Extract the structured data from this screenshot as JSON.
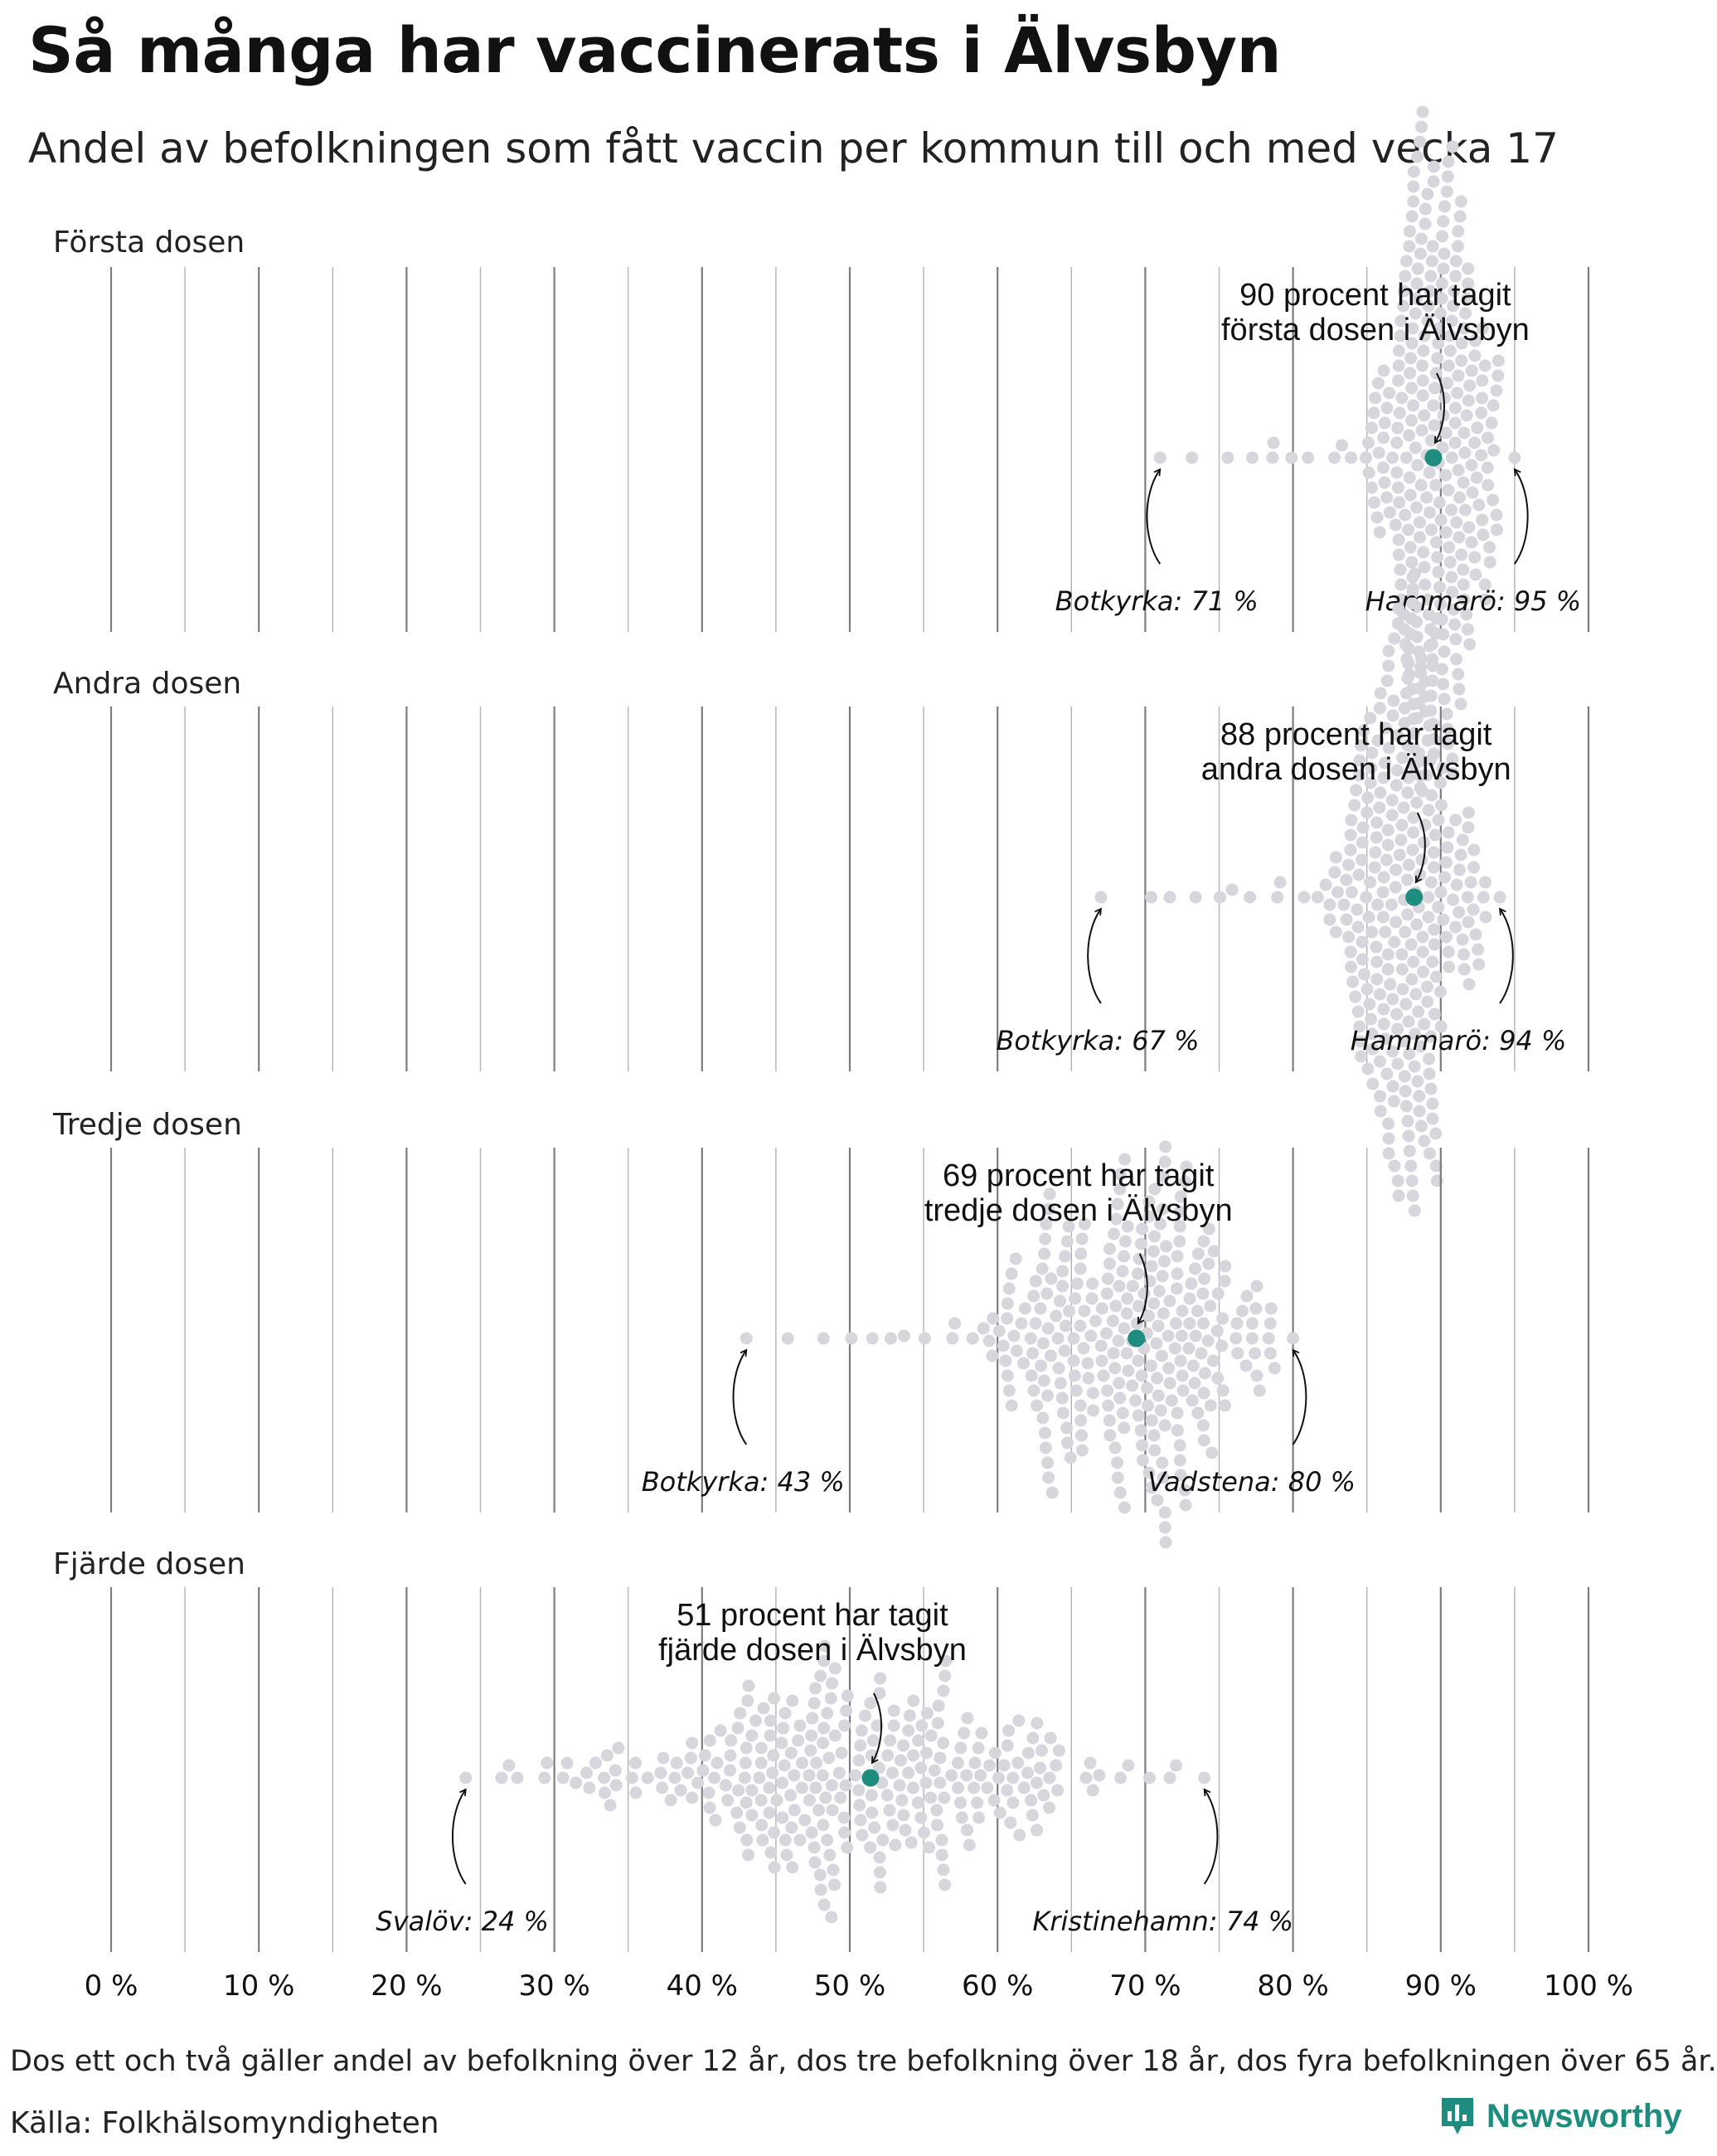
{
  "title": "Så många har vaccinerats i Älvsbyn",
  "subtitle": "Andel av befolkningen som fått vaccin per kommun till och med vecka 17",
  "footer": {
    "note": "Dos ett och två gäller andel av befolkning över 12 år, dos tre befolkning över 18 år, dos fyra befolkningen över 65 år.",
    "source": "Källa: Folkhälsomyndigheten",
    "brand": "Newsworthy"
  },
  "colors": {
    "highlight": "#1e8c7e",
    "dots": "#d7d6dd",
    "gridline": "#8a8a8a",
    "text": "#111111"
  },
  "icons": [
    "arrow-icon",
    "newsworthy-logo-icon"
  ],
  "chart_data": {
    "type": "scatter",
    "subtype": "beeswarm",
    "x_ticks": [
      0,
      10,
      20,
      30,
      40,
      50,
      60,
      70,
      80,
      90,
      100
    ],
    "x_tick_labels": [
      "0 %",
      "10 %",
      "20 %",
      "30 %",
      "40 %",
      "50 %",
      "60 %",
      "70 %",
      "80 %",
      "90 %",
      "100 %"
    ],
    "xlim": [
      0,
      100
    ],
    "minor_gridlines_every": 5,
    "panels": [
      {
        "label": "Första dosen",
        "highlight": {
          "municipality": "Älvsbyn",
          "value": 89.5,
          "annotation": [
            "90 procent har tagit",
            "första dosen i Älvsbyn"
          ]
        },
        "min": {
          "label": "Botkyrka: 71 %",
          "value": 71
        },
        "max": {
          "label": "Hammarö: 95 %",
          "value": 95
        },
        "distribution": {
          "center": 89.5,
          "sd": 2.1,
          "count": 290
        }
      },
      {
        "label": "Andra dosen",
        "highlight": {
          "municipality": "Älvsbyn",
          "value": 88.2,
          "annotation": [
            "88 procent har tagit",
            "andra dosen i Älvsbyn"
          ]
        },
        "min": {
          "label": "Botkyrka: 67 %",
          "value": 67
        },
        "max": {
          "label": "Hammarö: 94 %",
          "value": 94
        },
        "distribution": {
          "center": 87.7,
          "sd": 2.5,
          "count": 290
        }
      },
      {
        "label": "Tredje dosen",
        "highlight": {
          "municipality": "Älvsbyn",
          "value": 69.4,
          "annotation": [
            "69 procent har tagit",
            "tredje dosen i Älvsbyn"
          ]
        },
        "min": {
          "label": "Botkyrka: 43 %",
          "value": 43
        },
        "max": {
          "label": "Vadstena: 80 %",
          "value": 80
        },
        "distribution": {
          "center": 69,
          "sd": 4.6,
          "count": 290
        }
      },
      {
        "label": "Fjärde dosen",
        "highlight": {
          "municipality": "Älvsbyn",
          "value": 51.4,
          "annotation": [
            "51 procent har tagit",
            "fjärde dosen i Älvsbyn"
          ]
        },
        "min": {
          "label": "Svalöv: 24 %",
          "value": 24
        },
        "max": {
          "label": "Kristinehamn: 74 %",
          "value": 74
        },
        "distribution": {
          "center": 51,
          "sd": 8.5,
          "count": 290
        }
      }
    ]
  }
}
